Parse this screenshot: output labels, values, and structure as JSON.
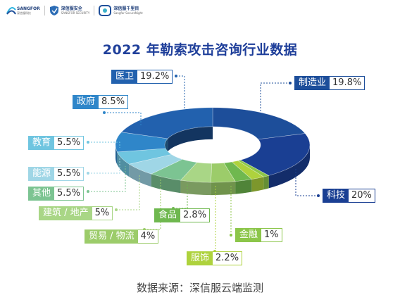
{
  "logos": {
    "sangfor": {
      "name": "SANGFOR",
      "sub": "深信服科技"
    },
    "security": {
      "name": "深信服安全",
      "sub": "SANGFOR SECURITY"
    },
    "cloud": {
      "name": "深信服千里目",
      "sub": "Sangfor SecureNight"
    }
  },
  "chart_data": {
    "type": "pie",
    "style": "3d-donut",
    "title": "2022 年勒索攻击咨询行业数据",
    "source": "数据来源：深信服云端监测",
    "slices": [
      {
        "name": "制造业",
        "value": 19.8,
        "display": "19.8%",
        "color": "#1d4e9a"
      },
      {
        "name": "科技",
        "value": 20,
        "display": "20%",
        "color": "#1a3f93"
      },
      {
        "name": "金融",
        "value": 1,
        "display": "1%",
        "color": "#8cc64a"
      },
      {
        "name": "服饰",
        "value": 2.2,
        "display": "2.2%",
        "color": "#aed23d"
      },
      {
        "name": "食品",
        "value": 2.8,
        "display": "2.8%",
        "color": "#6fb84f"
      },
      {
        "name": "贸易 / 物流",
        "value": 4,
        "display": "4%",
        "color": "#9ccc6a"
      },
      {
        "name": "建筑 / 地产",
        "value": 5,
        "display": "5%",
        "color": "#a9d686"
      },
      {
        "name": "其他",
        "value": 5.5,
        "display": "5.5%",
        "color": "#7cc492"
      },
      {
        "name": "能源",
        "value": 5.5,
        "display": "5.5%",
        "color": "#9fd6e6"
      },
      {
        "name": "教育",
        "value": 5.5,
        "display": "5.5%",
        "color": "#6fc5e0"
      },
      {
        "name": "政府",
        "value": 8.5,
        "display": "8.5%",
        "color": "#2f86c9"
      },
      {
        "name": "医卫",
        "value": 19.2,
        "display": "19.2%",
        "color": "#2261ae"
      }
    ]
  }
}
